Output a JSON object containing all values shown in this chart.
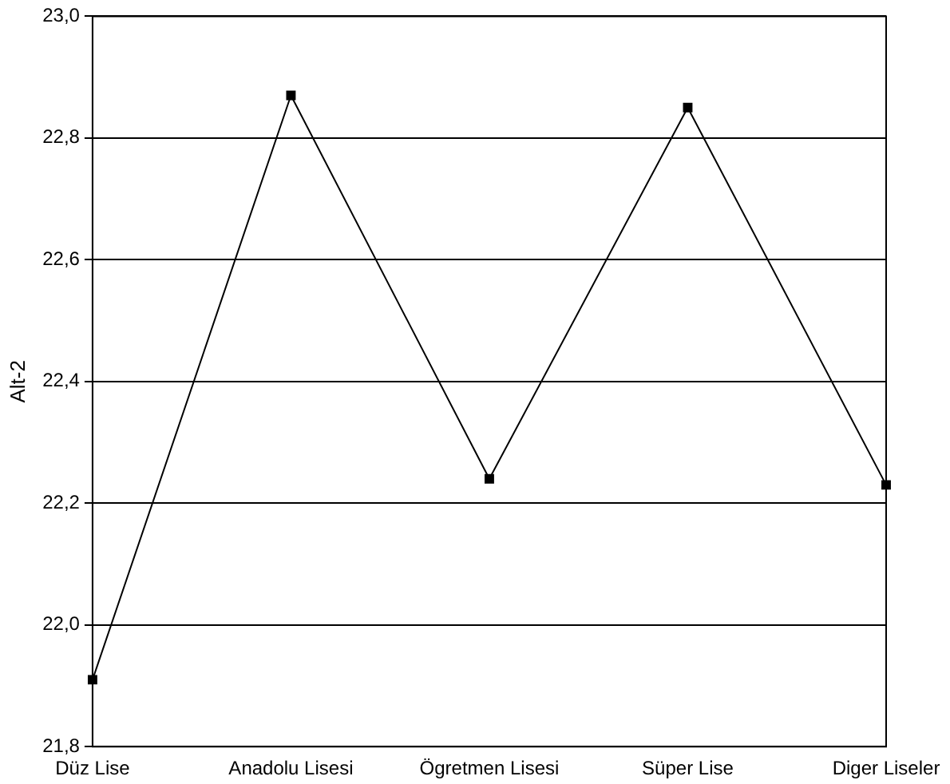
{
  "chart_data": {
    "type": "line",
    "ylabel": "Alt-2",
    "categories": [
      "Düz Lise",
      "Anadolu Lisesi",
      "Ögretmen Lisesi",
      "Süper Lise",
      "Diger Liseler"
    ],
    "series": [
      {
        "color": "#000000",
        "values": [
          21.91,
          22.87,
          22.24,
          22.85,
          22.23
        ]
      }
    ],
    "ylim": [
      21.8,
      23.0
    ],
    "yticks": [
      {
        "value": 21.8,
        "label": "21,8"
      },
      {
        "value": 22.0,
        "label": "22,0"
      },
      {
        "value": 22.2,
        "label": "22,2"
      },
      {
        "value": 22.4,
        "label": "22,4"
      },
      {
        "value": 22.6,
        "label": "22,6"
      },
      {
        "value": 22.8,
        "label": "22,8"
      },
      {
        "value": 23.0,
        "label": "23,0"
      }
    ],
    "grid": "y",
    "legend": false,
    "marker": "square",
    "line_style": "solid"
  }
}
